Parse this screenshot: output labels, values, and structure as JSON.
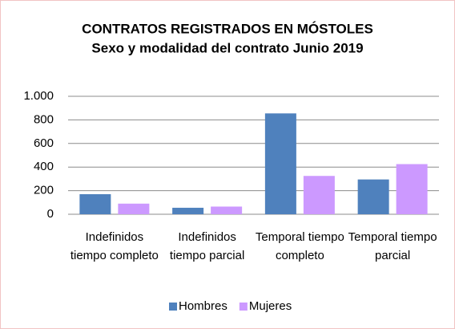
{
  "chart_data": {
    "type": "bar",
    "title": "CONTRATOS REGISTRADOS EN MÓSTOLES",
    "subtitle": "Sexo y modalidad del contrato Junio 2019",
    "categories": [
      "Indefinidos tiempo completo",
      "Indefinidos tiempo parcial",
      "Temporal tiempo completo",
      "Temporal tiempo parcial"
    ],
    "series": [
      {
        "name": "Hombres",
        "color": "#4f81bd",
        "values": [
          170,
          55,
          855,
          295
        ]
      },
      {
        "name": "Mujeres",
        "color": "#cc99ff",
        "values": [
          90,
          65,
          325,
          425
        ]
      }
    ],
    "ylim": [
      0,
      1000
    ],
    "yticks": [
      0,
      200,
      400,
      600,
      800,
      {
        "value": 1000,
        "label": "1.000"
      }
    ],
    "grid": true,
    "legend": "bottom"
  }
}
